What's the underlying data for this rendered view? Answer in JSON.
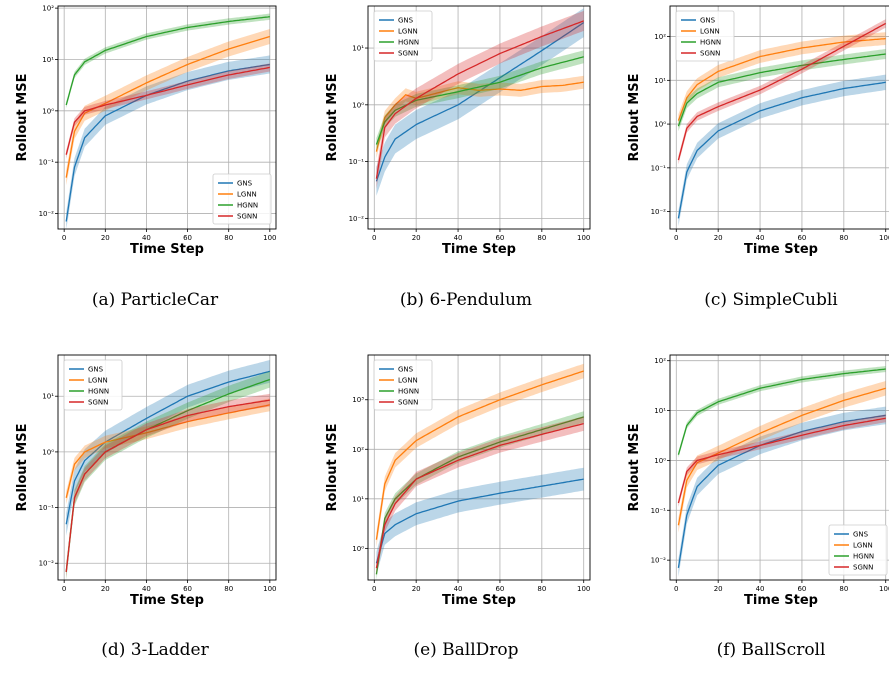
{
  "colors": {
    "GNS": "#1f77b4",
    "LGNN": "#ff7f0e",
    "HGNN": "#2ca02c",
    "SGNN": "#d62728"
  },
  "chart_data": [
    {
      "type": "line",
      "caption": "(a) ParticleCar",
      "xlabel": "Time Step",
      "ylabel": "Rollout MSE",
      "yscale": "log",
      "xlim": [
        -3,
        103
      ],
      "ylim": [
        0.005,
        110
      ],
      "xticks": [
        "0",
        "20",
        "40",
        "60",
        "80",
        "100"
      ],
      "yticks": [
        "10⁻²",
        "10⁻¹",
        "10⁰",
        "10¹",
        "10²"
      ],
      "legend": "lower-right",
      "series": [
        {
          "name": "GNS",
          "values": [
            [
              1,
              0.007
            ],
            [
              5,
              0.08
            ],
            [
              10,
              0.3
            ],
            [
              20,
              0.8
            ],
            [
              40,
              2
            ],
            [
              60,
              3.8
            ],
            [
              80,
              6
            ],
            [
              100,
              8
            ]
          ],
          "band": 1.5
        },
        {
          "name": "LGNN",
          "values": [
            [
              1,
              0.05
            ],
            [
              5,
              0.4
            ],
            [
              10,
              0.9
            ],
            [
              20,
              1.4
            ],
            [
              40,
              3.5
            ],
            [
              60,
              8
            ],
            [
              80,
              16
            ],
            [
              100,
              28
            ]
          ],
          "band": 1.4
        },
        {
          "name": "HGNN",
          "values": [
            [
              1,
              1.3
            ],
            [
              5,
              5
            ],
            [
              10,
              9
            ],
            [
              20,
              15
            ],
            [
              40,
              28
            ],
            [
              60,
              42
            ],
            [
              80,
              55
            ],
            [
              100,
              68
            ]
          ],
          "band": 1.15
        },
        {
          "name": "SGNN",
          "values": [
            [
              1,
              0.14
            ],
            [
              5,
              0.6
            ],
            [
              10,
              1
            ],
            [
              20,
              1.3
            ],
            [
              40,
              2
            ],
            [
              60,
              3.2
            ],
            [
              80,
              5
            ],
            [
              100,
              7
            ]
          ],
          "band": 1.2
        }
      ]
    },
    {
      "type": "line",
      "caption": "(b) 6-Pendulum",
      "xlabel": "Time Step",
      "ylabel": "Rollout MSE",
      "yscale": "log",
      "xlim": [
        -3,
        103
      ],
      "ylim": [
        0.0065,
        55
      ],
      "xticks": [
        "0",
        "20",
        "40",
        "60",
        "80",
        "100"
      ],
      "yticks": [
        "10⁻²",
        "10⁻¹",
        "10⁰",
        "10¹"
      ],
      "legend": "upper-left",
      "series": [
        {
          "name": "GNS",
          "values": [
            [
              1,
              0.045
            ],
            [
              5,
              0.12
            ],
            [
              10,
              0.25
            ],
            [
              20,
              0.45
            ],
            [
              40,
              1
            ],
            [
              60,
              3
            ],
            [
              80,
              9
            ],
            [
              100,
              28
            ]
          ],
          "band": 1.8
        },
        {
          "name": "LGNN",
          "values": [
            [
              1,
              0.15
            ],
            [
              5,
              0.6
            ],
            [
              10,
              1
            ],
            [
              15,
              1.5
            ],
            [
              20,
              1.3
            ],
            [
              40,
              2
            ],
            [
              50,
              1.8
            ],
            [
              60,
              1.9
            ],
            [
              70,
              1.8
            ],
            [
              80,
              2.1
            ],
            [
              90,
              2.2
            ],
            [
              100,
              2.5
            ]
          ],
          "band": 1.3
        },
        {
          "name": "HGNN",
          "values": [
            [
              1,
              0.2
            ],
            [
              5,
              0.5
            ],
            [
              10,
              0.8
            ],
            [
              20,
              1.2
            ],
            [
              40,
              1.7
            ],
            [
              60,
              2.5
            ],
            [
              80,
              4.5
            ],
            [
              100,
              7
            ]
          ],
          "band": 1.3
        },
        {
          "name": "SGNN",
          "values": [
            [
              1,
              0.05
            ],
            [
              5,
              0.4
            ],
            [
              10,
              0.7
            ],
            [
              20,
              1.3
            ],
            [
              40,
              3.5
            ],
            [
              60,
              8
            ],
            [
              80,
              16
            ],
            [
              100,
              30
            ]
          ],
          "band": 1.5
        }
      ]
    },
    {
      "type": "line",
      "caption": "(c) SimpleCubli",
      "xlabel": "Time Step",
      "ylabel": "Rollout MSE",
      "yscale": "log",
      "xlim": [
        -3,
        103
      ],
      "ylim": [
        0.004,
        500
      ],
      "xticks": [
        "0",
        "20",
        "40",
        "60",
        "80",
        "100"
      ],
      "yticks": [
        "10⁻²",
        "10⁻¹",
        "10⁰",
        "10¹",
        "10²"
      ],
      "legend": "upper-left",
      "series": [
        {
          "name": "GNS",
          "values": [
            [
              1,
              0.007
            ],
            [
              5,
              0.08
            ],
            [
              10,
              0.25
            ],
            [
              20,
              0.7
            ],
            [
              40,
              2
            ],
            [
              60,
              4
            ],
            [
              80,
              6.5
            ],
            [
              100,
              9
            ]
          ],
          "band": 1.5
        },
        {
          "name": "LGNN",
          "values": [
            [
              1,
              1.2
            ],
            [
              5,
              4
            ],
            [
              10,
              8
            ],
            [
              20,
              16
            ],
            [
              40,
              35
            ],
            [
              60,
              55
            ],
            [
              80,
              75
            ],
            [
              100,
              90
            ]
          ],
          "band": 1.4
        },
        {
          "name": "HGNN",
          "values": [
            [
              1,
              0.9
            ],
            [
              5,
              3
            ],
            [
              10,
              5
            ],
            [
              20,
              9
            ],
            [
              40,
              15
            ],
            [
              60,
              22
            ],
            [
              80,
              30
            ],
            [
              100,
              40
            ]
          ],
          "band": 1.3
        },
        {
          "name": "SGNN",
          "values": [
            [
              1,
              0.15
            ],
            [
              5,
              0.8
            ],
            [
              10,
              1.5
            ],
            [
              20,
              2.5
            ],
            [
              40,
              6
            ],
            [
              60,
              18
            ],
            [
              80,
              60
            ],
            [
              100,
              200
            ]
          ],
          "band": 1.25
        }
      ]
    },
    {
      "type": "line",
      "caption": "(d) 3-Ladder",
      "xlabel": "Time Step",
      "ylabel": "Rollout MSE",
      "yscale": "log",
      "xlim": [
        -3,
        103
      ],
      "ylim": [
        0.005,
        55
      ],
      "xticks": [
        "0",
        "20",
        "40",
        "60",
        "80",
        "100"
      ],
      "yticks": [
        "10⁻²",
        "10⁻¹",
        "10⁰",
        "10¹"
      ],
      "legend": "upper-left",
      "series": [
        {
          "name": "GNS",
          "values": [
            [
              1,
              0.05
            ],
            [
              5,
              0.3
            ],
            [
              10,
              0.7
            ],
            [
              20,
              1.5
            ],
            [
              40,
              4
            ],
            [
              60,
              10
            ],
            [
              80,
              18
            ],
            [
              100,
              28
            ]
          ],
          "band": 1.6
        },
        {
          "name": "LGNN",
          "values": [
            [
              1,
              0.15
            ],
            [
              5,
              0.6
            ],
            [
              10,
              1
            ],
            [
              20,
              1.5
            ],
            [
              40,
              2.2
            ],
            [
              60,
              3.5
            ],
            [
              80,
              5
            ],
            [
              100,
              7
            ]
          ],
          "band": 1.3
        },
        {
          "name": "HGNN",
          "values": [
            [
              1,
              0.007
            ],
            [
              5,
              0.15
            ],
            [
              10,
              0.4
            ],
            [
              20,
              1
            ],
            [
              40,
              2.5
            ],
            [
              60,
              5.5
            ],
            [
              80,
              11
            ],
            [
              100,
              20
            ]
          ],
          "band": 1.4
        },
        {
          "name": "SGNN",
          "values": [
            [
              1,
              0.007
            ],
            [
              5,
              0.15
            ],
            [
              10,
              0.4
            ],
            [
              20,
              1
            ],
            [
              40,
              2.5
            ],
            [
              60,
              4.5
            ],
            [
              80,
              6.5
            ],
            [
              100,
              8.5
            ]
          ],
          "band": 1.3
        }
      ]
    },
    {
      "type": "line",
      "caption": "(e) BallDrop",
      "xlabel": "Time Step",
      "ylabel": "Rollout MSE",
      "yscale": "log",
      "xlim": [
        -3,
        103
      ],
      "ylim": [
        0.23,
        8000
      ],
      "xticks": [
        "0",
        "20",
        "40",
        "60",
        "80",
        "100"
      ],
      "yticks": [
        "10⁰",
        "10¹",
        "10²",
        "10³"
      ],
      "legend": "upper-left",
      "series": [
        {
          "name": "GNS",
          "values": [
            [
              1,
              0.5
            ],
            [
              5,
              2
            ],
            [
              10,
              3
            ],
            [
              20,
              5
            ],
            [
              40,
              9
            ],
            [
              60,
              13
            ],
            [
              80,
              18
            ],
            [
              100,
              25
            ]
          ],
          "band": 1.7
        },
        {
          "name": "LGNN",
          "values": [
            [
              1,
              1.5
            ],
            [
              5,
              20
            ],
            [
              10,
              60
            ],
            [
              20,
              150
            ],
            [
              40,
              450
            ],
            [
              60,
              1000
            ],
            [
              80,
              2000
            ],
            [
              100,
              3800
            ]
          ],
          "band": 1.4
        },
        {
          "name": "HGNN",
          "values": [
            [
              1,
              0.3
            ],
            [
              5,
              4
            ],
            [
              10,
              10
            ],
            [
              20,
              25
            ],
            [
              40,
              70
            ],
            [
              60,
              140
            ],
            [
              80,
              250
            ],
            [
              100,
              450
            ]
          ],
          "band": 1.3
        },
        {
          "name": "SGNN",
          "values": [
            [
              1,
              0.4
            ],
            [
              5,
              3
            ],
            [
              10,
              8
            ],
            [
              20,
              25
            ],
            [
              40,
              60
            ],
            [
              60,
              120
            ],
            [
              80,
              200
            ],
            [
              100,
              330
            ]
          ],
          "band": 1.4
        }
      ]
    },
    {
      "type": "line",
      "caption": "(f) BallScroll",
      "xlabel": "Time Step",
      "ylabel": "Rollout MSE",
      "yscale": "log",
      "xlim": [
        -3,
        103
      ],
      "ylim": [
        0.004,
        130
      ],
      "xticks": [
        "0",
        "20",
        "40",
        "60",
        "80",
        "100"
      ],
      "yticks": [
        "10⁻²",
        "10⁻¹",
        "10⁰",
        "10¹",
        "10²"
      ],
      "legend": "lower-right",
      "series": [
        {
          "name": "GNS",
          "values": [
            [
              1,
              0.007
            ],
            [
              5,
              0.08
            ],
            [
              10,
              0.3
            ],
            [
              20,
              0.8
            ],
            [
              40,
              2
            ],
            [
              60,
              3.8
            ],
            [
              80,
              6
            ],
            [
              100,
              8
            ]
          ],
          "band": 1.5
        },
        {
          "name": "LGNN",
          "values": [
            [
              1,
              0.05
            ],
            [
              5,
              0.4
            ],
            [
              10,
              0.9
            ],
            [
              20,
              1.4
            ],
            [
              40,
              3.5
            ],
            [
              60,
              8
            ],
            [
              80,
              16
            ],
            [
              100,
              28
            ]
          ],
          "band": 1.4
        },
        {
          "name": "HGNN",
          "values": [
            [
              1,
              1.3
            ],
            [
              5,
              5
            ],
            [
              10,
              9
            ],
            [
              20,
              15
            ],
            [
              40,
              28
            ],
            [
              60,
              42
            ],
            [
              80,
              55
            ],
            [
              100,
              68
            ]
          ],
          "band": 1.15
        },
        {
          "name": "SGNN",
          "values": [
            [
              1,
              0.14
            ],
            [
              5,
              0.6
            ],
            [
              10,
              1
            ],
            [
              20,
              1.3
            ],
            [
              40,
              2
            ],
            [
              60,
              3.2
            ],
            [
              80,
              5
            ],
            [
              100,
              7
            ]
          ],
          "band": 1.2
        }
      ]
    }
  ]
}
